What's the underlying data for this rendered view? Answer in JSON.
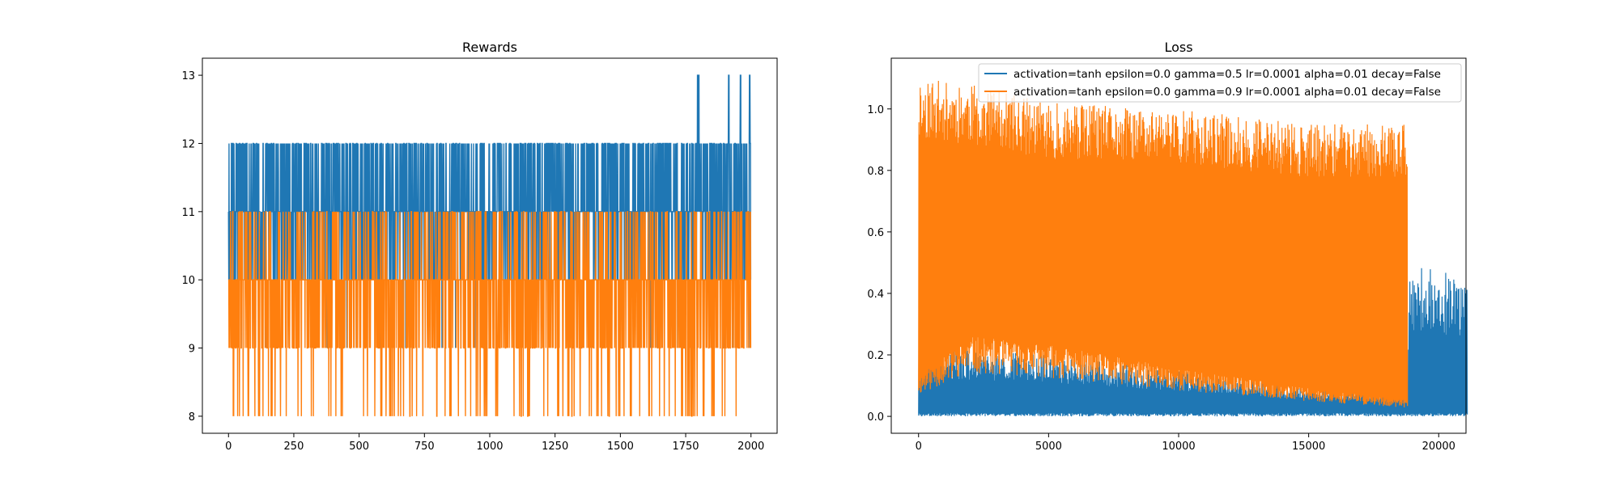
{
  "chart_data": [
    {
      "type": "line",
      "title": "Rewards",
      "xlabel": "",
      "ylabel": "",
      "xlim": [
        -100,
        2100
      ],
      "ylim": [
        7.75,
        13.25
      ],
      "xticks": [
        0,
        250,
        500,
        750,
        1000,
        1250,
        1500,
        1750,
        2000
      ],
      "yticks": [
        8,
        9,
        10,
        11,
        12,
        13
      ],
      "grid": false,
      "legend": null,
      "series": [
        {
          "color": "#1f77b4",
          "n_points": 2000,
          "typical_values": [
            10,
            11,
            12
          ],
          "occasional_values": [
            9,
            13
          ],
          "value_13_near_x": [
            1796,
            1800,
            1915,
            1960,
            1995
          ]
        },
        {
          "color": "#ff7f0e",
          "n_points": 2000,
          "typical_values": [
            9,
            10,
            11
          ],
          "occasional_values": [
            8
          ]
        }
      ]
    },
    {
      "type": "line",
      "title": "Loss",
      "xlabel": "",
      "ylabel": "",
      "xlim": [
        -1050,
        21050
      ],
      "ylim": [
        -0.055,
        1.165
      ],
      "xticks": [
        0,
        5000,
        10000,
        15000,
        20000
      ],
      "yticks": [
        0.0,
        0.2,
        0.4,
        0.6,
        0.8,
        1.0
      ],
      "grid": false,
      "legend": "upper right",
      "series": [
        {
          "name": "activation=tanh epsilon=0.0 gamma=0.5 lr=0.0001 alpha=0.01 decay=False",
          "color": "#1f77b4",
          "x_range": [
            0,
            21100
          ],
          "floor": 0.0,
          "upper_envelope": [
            [
              0,
              0.31
            ],
            [
              1000,
              0.22
            ],
            [
              5000,
              0.2
            ],
            [
              10000,
              0.15
            ],
            [
              15000,
              0.1
            ],
            [
              18800,
              0.08
            ],
            [
              18900,
              0.5
            ],
            [
              21100,
              0.46
            ]
          ]
        },
        {
          "name": "activation=tanh epsilon=0.0 gamma=0.9 lr=0.0001 alpha=0.01 decay=False",
          "color": "#ff7f0e",
          "x_range": [
            0,
            18800
          ],
          "lower_envelope": [
            [
              0,
              0.1
            ],
            [
              2000,
              0.2
            ],
            [
              5000,
              0.18
            ],
            [
              10000,
              0.12
            ],
            [
              15000,
              0.07
            ],
            [
              18800,
              0.04
            ]
          ],
          "upper_envelope": [
            [
              0,
              1.1
            ],
            [
              2000,
              1.08
            ],
            [
              5000,
              1.02
            ],
            [
              10000,
              1.0
            ],
            [
              15000,
              0.95
            ],
            [
              18800,
              0.95
            ]
          ]
        }
      ]
    }
  ]
}
